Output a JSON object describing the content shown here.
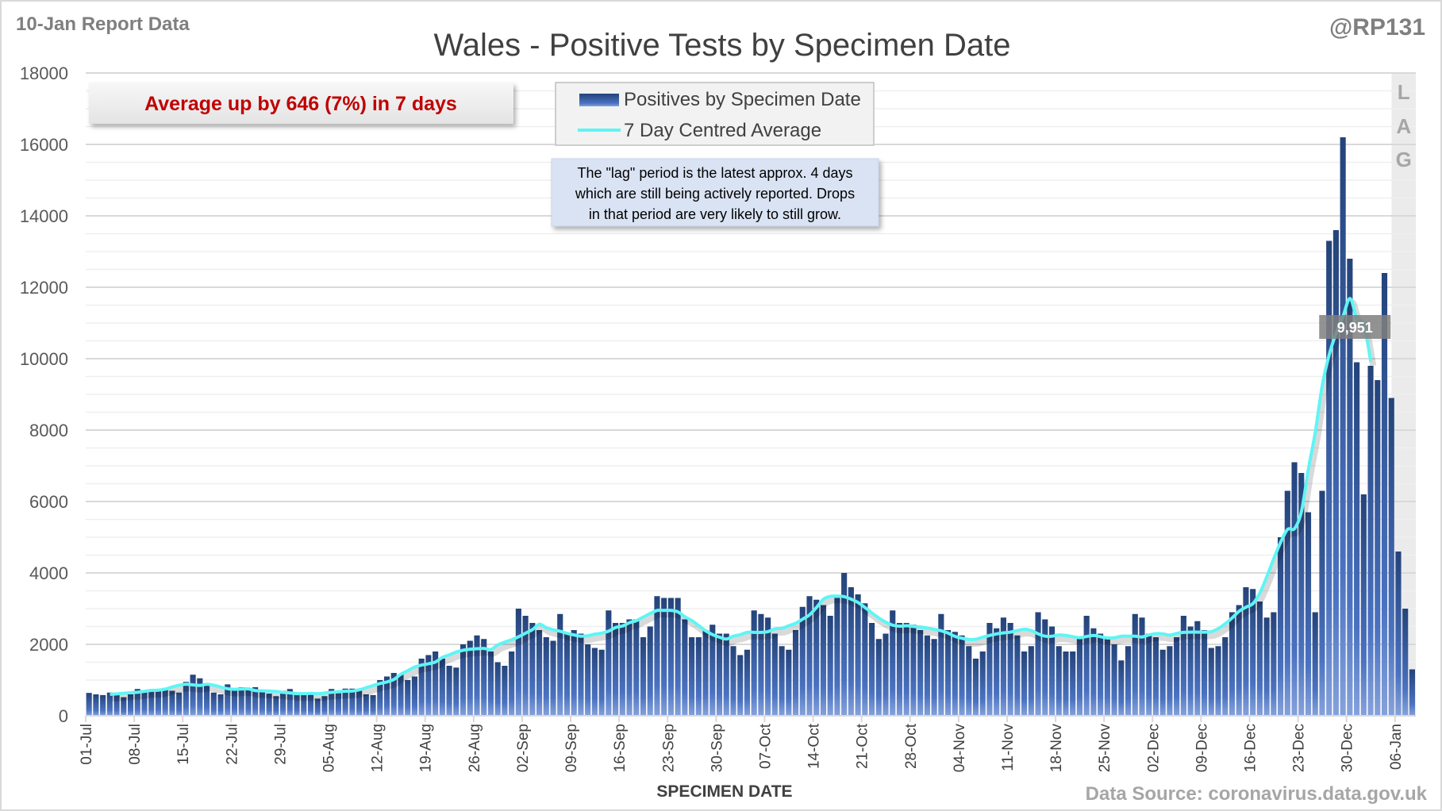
{
  "header": {
    "report_label": "10-Jan Report Data",
    "handle": "@RP131"
  },
  "annotations": {
    "average_change": "Average up by 646 (7%) in 7 days",
    "lag_note": [
      "The \"lag\" period is the latest approx. 4 days",
      "which are still being actively reported.  Drops",
      "in that period are very likely to still grow."
    ],
    "lag_letters": [
      "L",
      "A",
      "G"
    ],
    "last_average_label": "9,951",
    "data_source": "Data Source: coronavirus.data.gov.uk"
  },
  "colors": {
    "bar_dark": "#24437a",
    "bar_light": "#7a9ad8",
    "average_line": "#5ff5f5",
    "average_text": "#c00000",
    "lag_band": "#ebebeb"
  },
  "chart_data": {
    "type": "bar",
    "title": "Wales - Positive Tests by Specimen Date",
    "xlabel": "SPECIMEN DATE",
    "ylabel": "",
    "ylim": [
      0,
      18000
    ],
    "yticks": [
      0,
      2000,
      4000,
      6000,
      8000,
      10000,
      12000,
      14000,
      16000,
      18000
    ],
    "start_date": "01-Jul",
    "xtick_labels": [
      "01-Jul",
      "08-Jul",
      "15-Jul",
      "22-Jul",
      "29-Jul",
      "05-Aug",
      "12-Aug",
      "19-Aug",
      "26-Aug",
      "02-Sep",
      "09-Sep",
      "16-Sep",
      "23-Sep",
      "30-Sep",
      "07-Oct",
      "14-Oct",
      "21-Oct",
      "28-Oct",
      "04-Nov",
      "11-Nov",
      "18-Nov",
      "25-Nov",
      "02-Dec",
      "09-Dec",
      "16-Dec",
      "23-Dec",
      "30-Dec",
      "06-Jan"
    ],
    "legend": [
      "Positives by Specimen Date",
      "7 Day Centred Average"
    ],
    "legend_position": "top-center",
    "lag_days": 4,
    "series": [
      {
        "name": "Positives by Specimen Date",
        "values": [
          640,
          600,
          580,
          650,
          600,
          520,
          600,
          750,
          720,
          700,
          720,
          780,
          700,
          650,
          950,
          1150,
          1050,
          900,
          650,
          600,
          880,
          750,
          800,
          720,
          800,
          700,
          620,
          550,
          700,
          750,
          640,
          620,
          600,
          480,
          550,
          750,
          700,
          760,
          760,
          700,
          600,
          580,
          1000,
          1100,
          1200,
          1150,
          1000,
          1100,
          1600,
          1700,
          1800,
          1600,
          1400,
          1350,
          2000,
          2100,
          2250,
          2150,
          1800,
          1500,
          1400,
          1800,
          3000,
          2800,
          2600,
          2400,
          2200,
          2100,
          2850,
          2300,
          2400,
          2300,
          2000,
          1900,
          1850,
          2950,
          2600,
          2600,
          2700,
          2700,
          2200,
          2500,
          3350,
          3300,
          3300,
          3300,
          2700,
          2200,
          2200,
          2400,
          2550,
          2300,
          2300,
          1950,
          1700,
          1850,
          2950,
          2850,
          2750,
          2300,
          1950,
          1850,
          2400,
          3050,
          3350,
          3250,
          3100,
          2800,
          3300,
          4000,
          3600,
          3400,
          3150,
          2600,
          2150,
          2300,
          2950,
          2600,
          2600,
          2550,
          2400,
          2250,
          2150,
          2850,
          2400,
          2350,
          2250,
          1950,
          1600,
          1800,
          2600,
          2450,
          2750,
          2600,
          2250,
          1800,
          1950,
          2900,
          2700,
          2500,
          1950,
          1800,
          1800,
          2200,
          2800,
          2450,
          2300,
          2200,
          2000,
          1550,
          1950,
          2850,
          2750,
          2300,
          2200,
          1850,
          1950,
          2200,
          2800,
          2500,
          2650,
          2400,
          1900,
          1950,
          2200,
          2900,
          3100,
          3600,
          3550,
          3200,
          2750,
          2900,
          5000,
          6300,
          7100,
          6800,
          5700,
          2900,
          6300,
          13300,
          13600,
          16200,
          12800,
          9900,
          6200,
          9800,
          9400,
          12400,
          8900,
          4600,
          3000,
          1300
        ]
      },
      {
        "name": "7 Day Centred Average",
        "computed_from": "Positives by Specimen Date",
        "window": 7
      }
    ]
  }
}
